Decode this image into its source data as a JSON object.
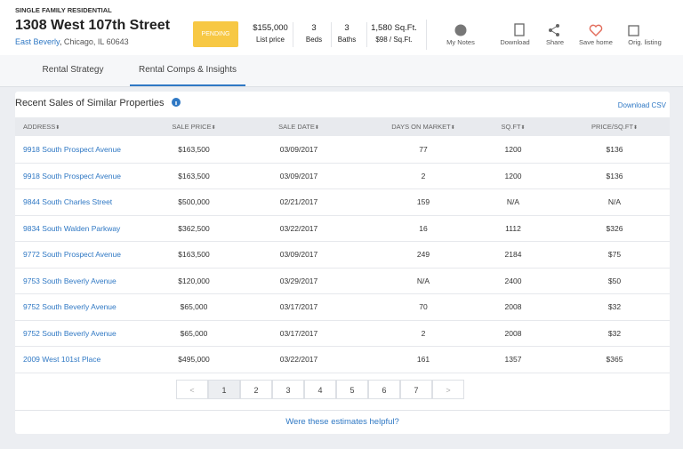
{
  "header": {
    "category": "SINGLE FAMILY RESIDENTIAL",
    "address": "1308 West 107th Street",
    "neighborhood": "East Beverly",
    "city": "Chicago, IL 60643",
    "status": "PENDING",
    "stats": [
      {
        "value": "$155,000",
        "label": "List price"
      },
      {
        "value": "3",
        "label": "Beds"
      },
      {
        "value": "3",
        "label": "Baths"
      },
      {
        "value": "1,580 Sq.Ft.",
        "label": "$98 / Sq.Ft."
      }
    ],
    "actions": [
      "My Notes",
      "Download",
      "Share",
      "Save home",
      "Orig. listing"
    ]
  },
  "tabs": [
    "Rental Strategy",
    "Rental Comps & Insights"
  ],
  "section": {
    "title": "Recent Sales of Similar Properties",
    "download": "Download CSV"
  },
  "table": {
    "columns": [
      "ADDRESS",
      "SALE PRICE",
      "SALE DATE",
      "DAYS ON MARKET",
      "SQ.FT",
      "PRICE/SQ.FT"
    ],
    "rows": [
      [
        "9918 South Prospect Avenue",
        "$163,500",
        "03/09/2017",
        "77",
        "1200",
        "$136"
      ],
      [
        "9918 South Prospect Avenue",
        "$163,500",
        "03/09/2017",
        "2",
        "1200",
        "$136"
      ],
      [
        "9844 South Charles Street",
        "$500,000",
        "02/21/2017",
        "159",
        "N/A",
        "N/A"
      ],
      [
        "9834 South Walden Parkway",
        "$362,500",
        "03/22/2017",
        "16",
        "1112",
        "$326"
      ],
      [
        "9772 South Prospect Avenue",
        "$163,500",
        "03/09/2017",
        "249",
        "2184",
        "$75"
      ],
      [
        "9753 South Beverly Avenue",
        "$120,000",
        "03/29/2017",
        "N/A",
        "2400",
        "$50"
      ],
      [
        "9752 South Beverly Avenue",
        "$65,000",
        "03/17/2017",
        "70",
        "2008",
        "$32"
      ],
      [
        "9752 South Beverly Avenue",
        "$65,000",
        "03/17/2017",
        "2",
        "2008",
        "$32"
      ],
      [
        "2009 West 101st Place",
        "$495,000",
        "03/22/2017",
        "161",
        "1357",
        "$365"
      ]
    ]
  },
  "pagination": [
    "<",
    "1",
    "2",
    "3",
    "4",
    "5",
    "6",
    "7",
    ">"
  ],
  "footer": "Were these estimates helpful?"
}
